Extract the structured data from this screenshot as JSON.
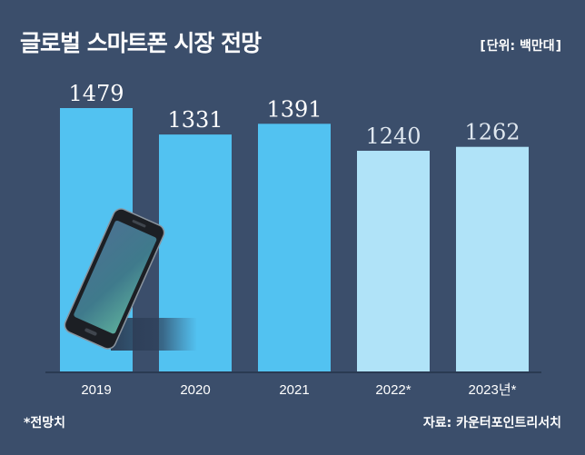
{
  "header": {
    "title": "글로벌 스마트폰 시장 전망",
    "unit_open": "[",
    "unit": "단위: 백만대",
    "unit_close": "]"
  },
  "footer": {
    "footnote": "*전망치",
    "source": "자료: 카운터포인트리서치"
  },
  "colors": {
    "background": "#3b4e6b",
    "actual_bar": "#52c2f1",
    "forecast_bar": "#b0e3f8",
    "actual_label": "#ffffff",
    "forecast_label": "#dfe7ef"
  },
  "chart_data": {
    "type": "bar",
    "categories": [
      "2019",
      "2020",
      "2021",
      "2022*",
      "2023년*"
    ],
    "values": [
      1479,
      1331,
      1391,
      1240,
      1262
    ],
    "forecast": [
      false,
      false,
      false,
      true,
      true
    ],
    "title": "글로벌 스마트폰 시장 전망",
    "unit": "단위: 백만대",
    "grid": false,
    "legend": "none",
    "decoration": "smartphone-illustration"
  }
}
